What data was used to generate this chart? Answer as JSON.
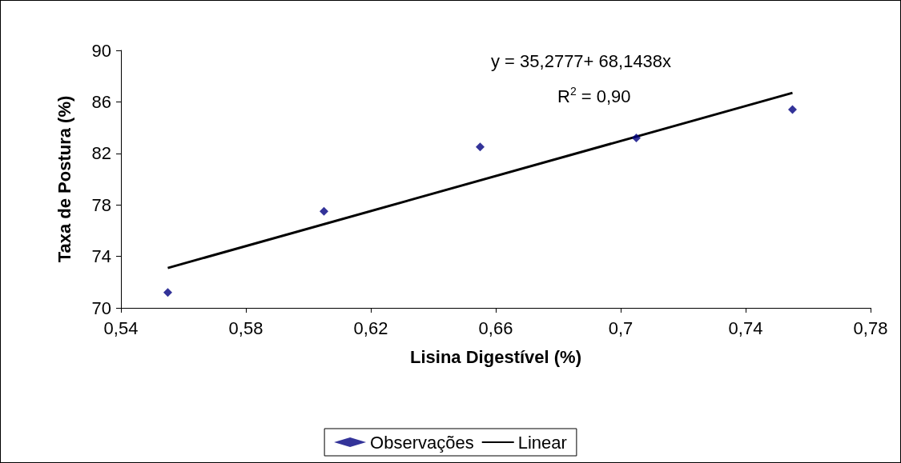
{
  "chart_data": {
    "type": "scatter",
    "xlabel": "Lisina Digestível (%)",
    "ylabel": "Taxa de Postura (%)",
    "xlim": [
      0.54,
      0.78
    ],
    "xticks": [
      {
        "value": 0.54,
        "label": "0,54"
      },
      {
        "value": 0.58,
        "label": "0,58"
      },
      {
        "value": 0.62,
        "label": "0,62"
      },
      {
        "value": 0.66,
        "label": "0,66"
      },
      {
        "value": 0.7,
        "label": "0,7"
      },
      {
        "value": 0.74,
        "label": "0,74"
      },
      {
        "value": 0.78,
        "label": "0,78"
      }
    ],
    "ylim": [
      70,
      90
    ],
    "yticks": [
      70,
      74,
      78,
      82,
      86,
      90
    ],
    "grid": false,
    "legend": "bottom",
    "annotations": [
      "y = 35,2777+ 68,1438x",
      "R$^{2}$ = 0,90"
    ],
    "series": [
      {
        "name": "Observações",
        "marker": "diamond",
        "color": "#000080",
        "x": [
          0.555,
          0.605,
          0.655,
          0.705,
          0.755
        ],
        "values": [
          71.2,
          77.5,
          82.5,
          83.2,
          85.4
        ]
      },
      {
        "name": "Linear",
        "type": "line",
        "marker": "none",
        "line_style": "solid",
        "color": "#000000",
        "x": [
          0.555,
          0.755
        ],
        "values": [
          73.1,
          86.7
        ]
      }
    ]
  }
}
